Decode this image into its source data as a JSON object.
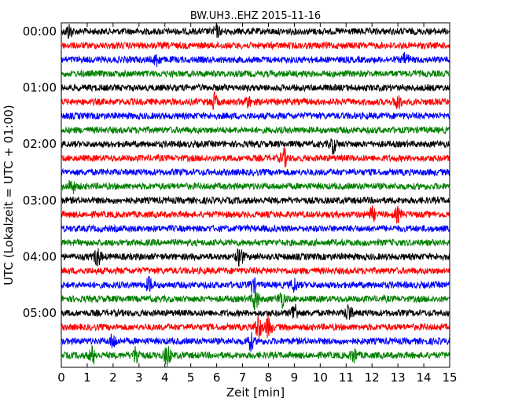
{
  "chart_data": {
    "type": "line",
    "title": "BW.UH3..EHZ 2015-11-16",
    "xlabel": "Zeit  [min]",
    "ylabel": "UTC (Lokalzeit = UTC + 01:00)",
    "xlim": [
      0,
      15
    ],
    "x_ticks": [
      "0",
      "1",
      "2",
      "3",
      "4",
      "5",
      "6",
      "7",
      "8",
      "9",
      "10",
      "11",
      "12",
      "13",
      "14",
      "15"
    ],
    "y_ticks": [
      "00:00",
      "01:00",
      "02:00",
      "03:00",
      "04:00",
      "05:00"
    ],
    "trace_count": 24,
    "trace_interval_min": 15,
    "trace_colors": [
      "#000000",
      "#ff0000",
      "#0000ff",
      "#008000"
    ],
    "events": [
      {
        "trace": 0,
        "x": 0.3,
        "amp": 1.6
      },
      {
        "trace": 0,
        "x": 6.0,
        "amp": 1.2
      },
      {
        "trace": 2,
        "x": 3.7,
        "amp": 1.4
      },
      {
        "trace": 2,
        "x": 13.3,
        "amp": 1.3
      },
      {
        "trace": 5,
        "x": 5.9,
        "amp": 1.8
      },
      {
        "trace": 5,
        "x": 7.2,
        "amp": 1.2
      },
      {
        "trace": 5,
        "x": 13.0,
        "amp": 1.7
      },
      {
        "trace": 8,
        "x": 10.5,
        "amp": 1.9
      },
      {
        "trace": 9,
        "x": 8.6,
        "amp": 2.0
      },
      {
        "trace": 11,
        "x": 0.4,
        "amp": 1.7
      },
      {
        "trace": 13,
        "x": 12.0,
        "amp": 1.5
      },
      {
        "trace": 13,
        "x": 13.0,
        "amp": 1.5
      },
      {
        "trace": 16,
        "x": 1.4,
        "amp": 2.2
      },
      {
        "trace": 16,
        "x": 6.9,
        "amp": 2.2
      },
      {
        "trace": 18,
        "x": 3.4,
        "amp": 1.6
      },
      {
        "trace": 18,
        "x": 7.4,
        "amp": 1.5
      },
      {
        "trace": 18,
        "x": 9.0,
        "amp": 1.5
      },
      {
        "trace": 19,
        "x": 7.5,
        "amp": 2.8
      },
      {
        "trace": 19,
        "x": 8.5,
        "amp": 1.9
      },
      {
        "trace": 20,
        "x": 9.0,
        "amp": 2.4
      },
      {
        "trace": 20,
        "x": 11.1,
        "amp": 2.0
      },
      {
        "trace": 21,
        "x": 7.6,
        "amp": 3.0
      },
      {
        "trace": 21,
        "x": 8.0,
        "amp": 2.5
      },
      {
        "trace": 22,
        "x": 2.0,
        "amp": 1.6
      },
      {
        "trace": 22,
        "x": 7.3,
        "amp": 2.0
      },
      {
        "trace": 23,
        "x": 1.2,
        "amp": 2.0
      },
      {
        "trace": 23,
        "x": 2.9,
        "amp": 2.2
      },
      {
        "trace": 23,
        "x": 4.1,
        "amp": 2.4
      },
      {
        "trace": 23,
        "x": 11.3,
        "amp": 1.6
      }
    ]
  }
}
